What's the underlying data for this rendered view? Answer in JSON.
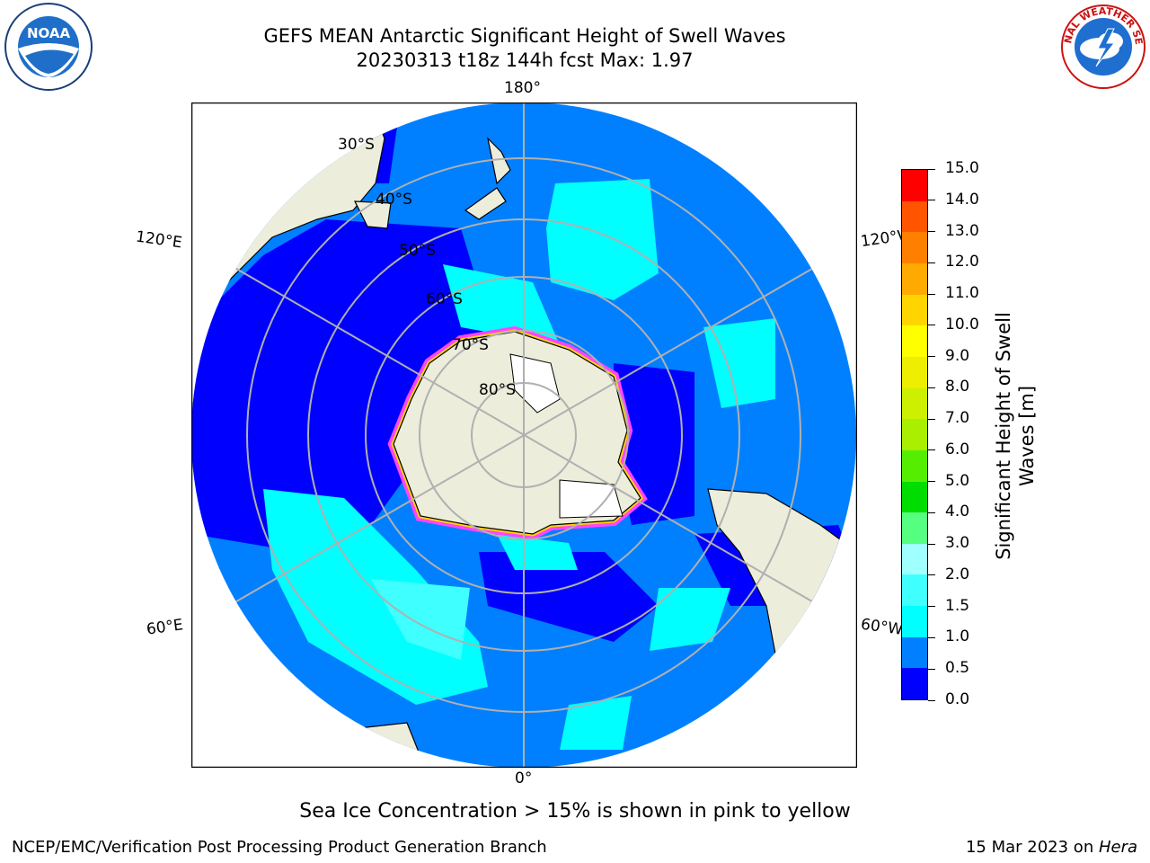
{
  "title": {
    "line1": "GEFS MEAN Antarctic Significant Height of Swell Waves",
    "line2": "20230313 t18z 144h fcst   Max: 1.97"
  },
  "logos": {
    "noaa_text": "NOAA",
    "nws_text": "NATIONAL WEATHER SERVICE"
  },
  "map": {
    "projection": "south-polar-stereographic",
    "longitude_labels": {
      "top": "180°",
      "bottom": "0°",
      "upper_left": "120°E",
      "upper_right": "120°W",
      "lower_left": "60°E",
      "lower_right": "60°W"
    },
    "latitude_labels": [
      "30°S",
      "40°S",
      "50°S",
      "60°S",
      "70°S",
      "80°S"
    ],
    "colors": {
      "ocean_primary": "#0080ff",
      "ocean_low": "#0000ff",
      "ocean_mid": "#00ffff",
      "land": "#ededdc",
      "sea_ice_pink": "#ff44ff",
      "sea_ice_yellow": "#ffd500",
      "grid": "#b0b0b0"
    }
  },
  "colorbar": {
    "label": "Significant Height of Swell Waves [m]",
    "label_line1": "Significant Height of Swell",
    "label_line2": "Waves [m]",
    "ticks": [
      "0.0",
      "0.5",
      "1.0",
      "1.5",
      "2.0",
      "3.0",
      "4.0",
      "5.0",
      "6.0",
      "7.0",
      "8.0",
      "9.0",
      "10.0",
      "11.0",
      "12.0",
      "13.0",
      "14.0",
      "15.0"
    ],
    "colors": [
      "#0000ff",
      "#0080ff",
      "#00ffff",
      "#40ffff",
      "#a0ffff",
      "#55ff80",
      "#00dd00",
      "#55ee00",
      "#aaee00",
      "#ccf000",
      "#eeee00",
      "#ffff00",
      "#ffd500",
      "#ffaa00",
      "#ff8000",
      "#ff5500",
      "#ff0000"
    ]
  },
  "notes": {
    "ice": "Sea Ice Concentration > 15% is shown in pink to yellow"
  },
  "footer": {
    "left": "NCEP/EMC/Verification Post Processing Product Generation Branch",
    "right_date": "15 Mar 2023 on ",
    "right_host": "Hera"
  }
}
